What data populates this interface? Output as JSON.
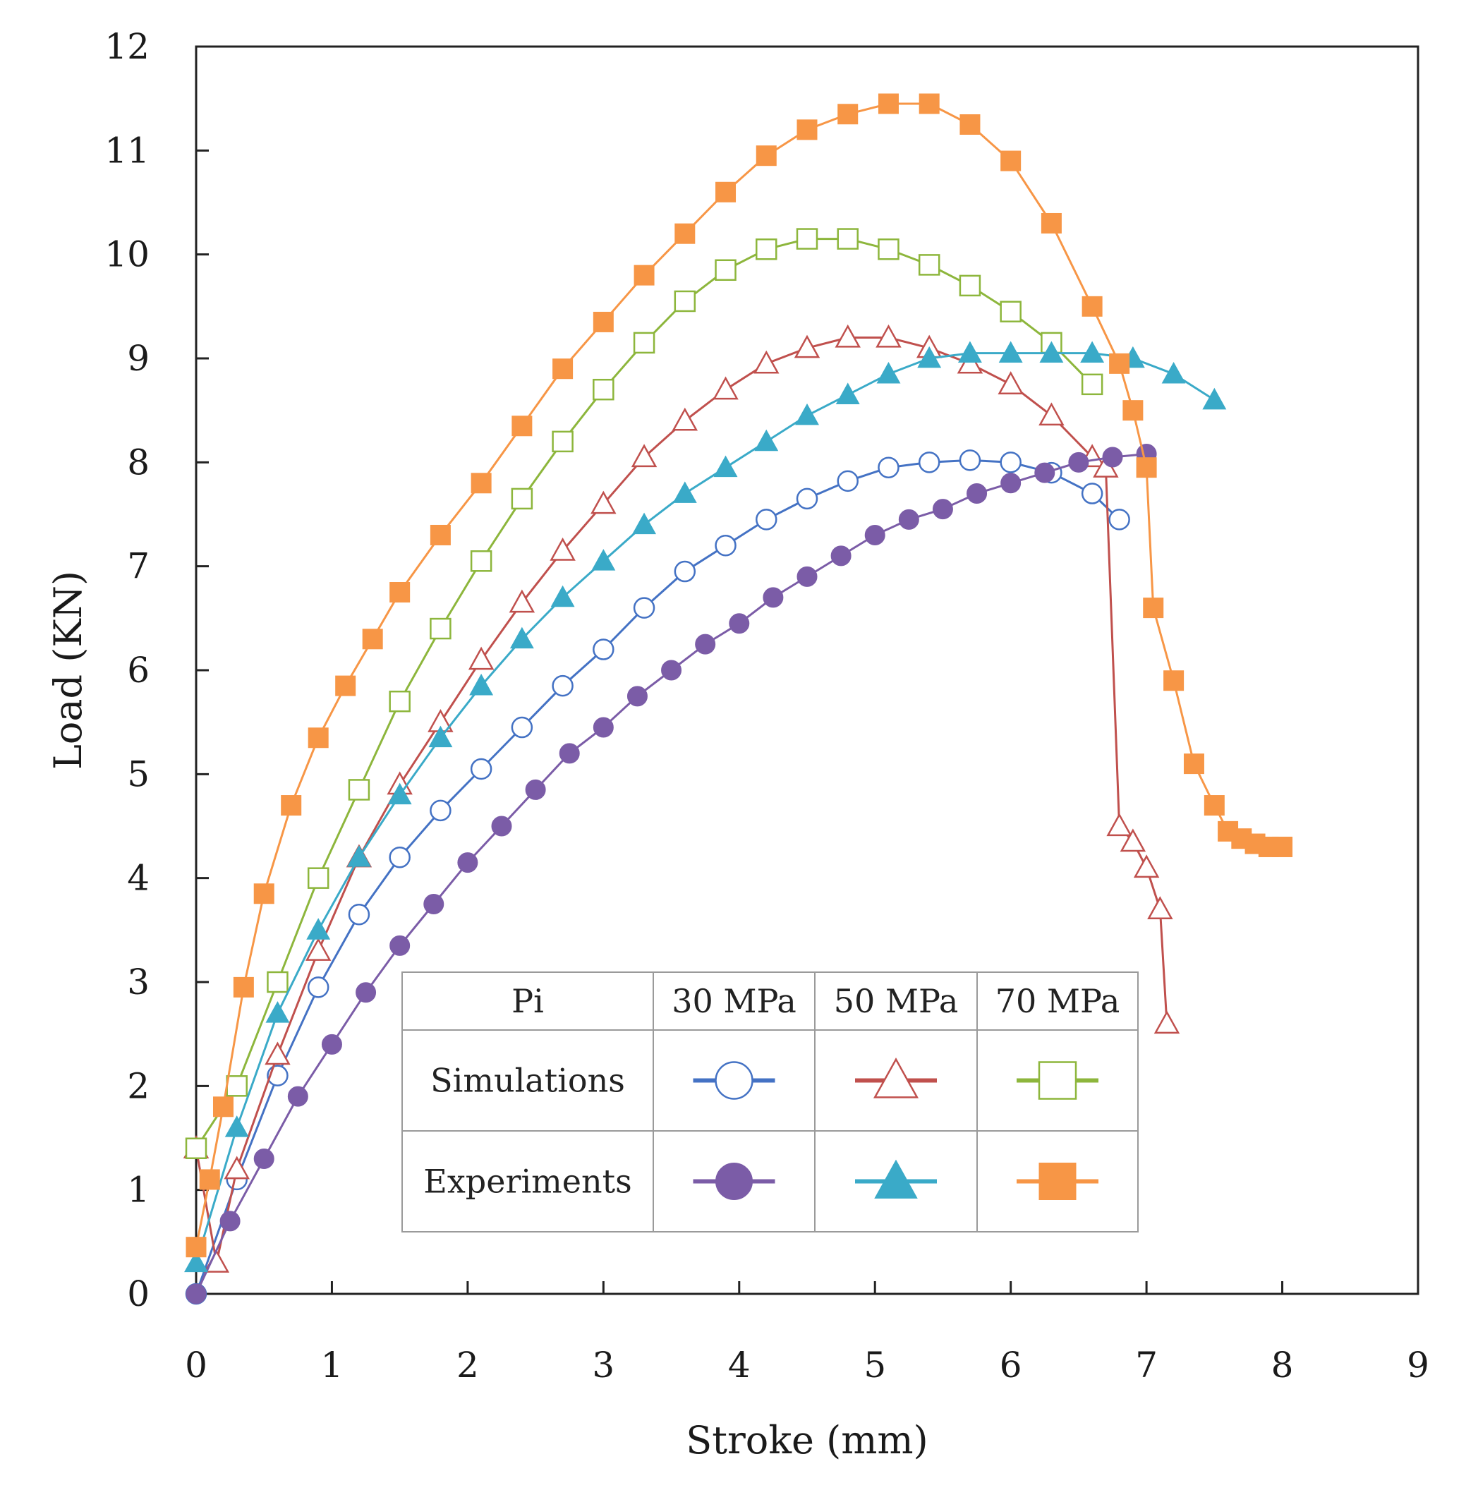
{
  "chart_data": {
    "type": "line",
    "title": "",
    "xlabel": "Stroke (mm)",
    "ylabel": "Load (KN)",
    "xlim": [
      0,
      9
    ],
    "ylim": [
      0,
      12
    ],
    "xticks": [
      "0",
      "1",
      "2",
      "3",
      "4",
      "5",
      "6",
      "7",
      "8",
      "9"
    ],
    "yticks": [
      "0",
      "1",
      "2",
      "3",
      "4",
      "5",
      "6",
      "7",
      "8",
      "9",
      "10",
      "11",
      "12"
    ],
    "grid": false,
    "legend": {
      "placement": "lower-center",
      "header": [
        "Pi",
        "30 MPa",
        "50 MPa",
        "70 MPa"
      ],
      "rows": [
        "Simulations",
        "Experiments"
      ]
    },
    "series": [
      {
        "name": "Simulations 30 MPa",
        "color": "#4472c4",
        "marker": "circle",
        "filled": false,
        "x": [
          0,
          0.3,
          0.6,
          0.9,
          1.2,
          1.5,
          1.8,
          2.1,
          2.4,
          2.7,
          3.0,
          3.3,
          3.6,
          3.9,
          4.2,
          4.5,
          4.8,
          5.1,
          5.4,
          5.7,
          6.0,
          6.3,
          6.6,
          6.8
        ],
        "y": [
          0,
          1.1,
          2.1,
          2.95,
          3.65,
          4.2,
          4.65,
          5.05,
          5.45,
          5.85,
          6.2,
          6.6,
          6.95,
          7.2,
          7.45,
          7.65,
          7.82,
          7.95,
          8.0,
          8.02,
          8.0,
          7.9,
          7.7,
          7.45
        ]
      },
      {
        "name": "Simulations 50 MPa",
        "color": "#c0504d",
        "marker": "triangle",
        "filled": false,
        "x": [
          0,
          0.15,
          0.3,
          0.6,
          0.9,
          1.2,
          1.5,
          1.8,
          2.1,
          2.4,
          2.7,
          3.0,
          3.3,
          3.6,
          3.9,
          4.2,
          4.5,
          4.8,
          5.1,
          5.4,
          5.7,
          6.0,
          6.3,
          6.6,
          6.7,
          6.8,
          6.9,
          7.0,
          7.1,
          7.15
        ],
        "y": [
          1.4,
          0.3,
          1.2,
          2.3,
          3.3,
          4.2,
          4.9,
          5.5,
          6.1,
          6.65,
          7.15,
          7.6,
          8.05,
          8.4,
          8.7,
          8.95,
          9.1,
          9.2,
          9.2,
          9.1,
          8.95,
          8.75,
          8.45,
          8.05,
          7.95,
          4.5,
          4.35,
          4.1,
          3.7,
          2.6
        ]
      },
      {
        "name": "Simulations 70 MPa",
        "color": "#8db63c",
        "marker": "square",
        "filled": false,
        "x": [
          0,
          0.3,
          0.6,
          0.9,
          1.2,
          1.5,
          1.8,
          2.1,
          2.4,
          2.7,
          3.0,
          3.3,
          3.6,
          3.9,
          4.2,
          4.5,
          4.8,
          5.1,
          5.4,
          5.7,
          6.0,
          6.3,
          6.6
        ],
        "y": [
          1.4,
          2.0,
          3.0,
          4.0,
          4.85,
          5.7,
          6.4,
          7.05,
          7.65,
          8.2,
          8.7,
          9.15,
          9.55,
          9.85,
          10.05,
          10.15,
          10.15,
          10.05,
          9.9,
          9.7,
          9.45,
          9.15,
          8.75
        ]
      },
      {
        "name": "Experiments 30 MPa",
        "color": "#7b5ca7",
        "marker": "circle",
        "filled": true,
        "x": [
          0,
          0.25,
          0.5,
          0.75,
          1.0,
          1.25,
          1.5,
          1.75,
          2.0,
          2.25,
          2.5,
          2.75,
          3.0,
          3.25,
          3.5,
          3.75,
          4.0,
          4.25,
          4.5,
          4.75,
          5.0,
          5.25,
          5.5,
          5.75,
          6.0,
          6.25,
          6.5,
          6.75,
          7.0
        ],
        "y": [
          0,
          0.7,
          1.3,
          1.9,
          2.4,
          2.9,
          3.35,
          3.75,
          4.15,
          4.5,
          4.85,
          5.2,
          5.45,
          5.75,
          6.0,
          6.25,
          6.45,
          6.7,
          6.9,
          7.1,
          7.3,
          7.45,
          7.55,
          7.7,
          7.8,
          7.9,
          8.0,
          8.05,
          8.08
        ]
      },
      {
        "name": "Experiments 50 MPa",
        "color": "#3aaac8",
        "marker": "triangle",
        "filled": true,
        "x": [
          0,
          0.3,
          0.6,
          0.9,
          1.2,
          1.5,
          1.8,
          2.1,
          2.4,
          2.7,
          3.0,
          3.3,
          3.6,
          3.9,
          4.2,
          4.5,
          4.8,
          5.1,
          5.4,
          5.7,
          6.0,
          6.3,
          6.6,
          6.9,
          7.2,
          7.5
        ],
        "y": [
          0.3,
          1.6,
          2.7,
          3.5,
          4.2,
          4.8,
          5.35,
          5.85,
          6.3,
          6.7,
          7.05,
          7.4,
          7.7,
          7.95,
          8.2,
          8.45,
          8.65,
          8.85,
          9.0,
          9.05,
          9.05,
          9.05,
          9.05,
          9.0,
          8.85,
          8.6
        ]
      },
      {
        "name": "Experiments 70 MPa",
        "color": "#f79646",
        "marker": "square",
        "filled": true,
        "x": [
          0,
          0.1,
          0.2,
          0.35,
          0.5,
          0.7,
          0.9,
          1.1,
          1.3,
          1.5,
          1.8,
          2.1,
          2.4,
          2.7,
          3.0,
          3.3,
          3.6,
          3.9,
          4.2,
          4.5,
          4.8,
          5.1,
          5.4,
          5.7,
          6.0,
          6.3,
          6.6,
          6.8,
          6.9,
          7.0,
          7.05,
          7.2,
          7.35,
          7.5,
          7.6,
          7.7,
          7.8,
          7.9,
          8.0
        ],
        "y": [
          0.45,
          1.1,
          1.8,
          2.95,
          3.85,
          4.7,
          5.35,
          5.85,
          6.3,
          6.75,
          7.3,
          7.8,
          8.35,
          8.9,
          9.35,
          9.8,
          10.2,
          10.6,
          10.95,
          11.2,
          11.35,
          11.45,
          11.45,
          11.25,
          10.9,
          10.3,
          9.5,
          8.95,
          8.5,
          7.95,
          6.6,
          5.9,
          5.1,
          4.7,
          4.45,
          4.38,
          4.33,
          4.3,
          4.3
        ]
      }
    ]
  }
}
